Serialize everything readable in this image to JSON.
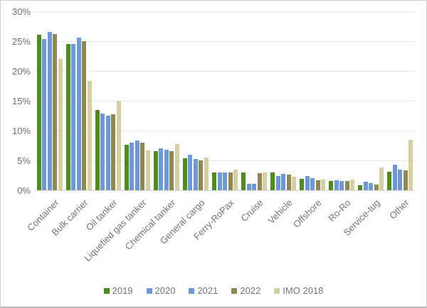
{
  "chart_data": {
    "type": "bar",
    "title": "",
    "categories": [
      "Container",
      "Bulk carrier",
      "Oil tanker",
      "Liquefied gas tanker",
      "Chemical tanker",
      "General cargo",
      "Ferry-RoPax",
      "Cruise",
      "Vehicle",
      "Offshore",
      "Ro-Ro",
      "Service-tug",
      "Other"
    ],
    "series": [
      {
        "name": "2019",
        "color": "#4e8c1e",
        "values": [
          26.1,
          24.5,
          13.4,
          7.6,
          6.5,
          5.3,
          3.0,
          3.0,
          3.0,
          1.9,
          1.5,
          0.8,
          3.1
        ]
      },
      {
        "name": "2020",
        "color": "#6d9ad6",
        "values": [
          25.4,
          24.5,
          12.8,
          8.0,
          7.0,
          6.0,
          3.0,
          1.1,
          2.4,
          2.4,
          1.7,
          1.4,
          4.3
        ]
      },
      {
        "name": "2021",
        "color": "#6d9ad6",
        "values": [
          26.6,
          25.6,
          12.5,
          8.3,
          6.8,
          5.2,
          3.0,
          1.1,
          2.7,
          2.0,
          1.6,
          1.2,
          3.5
        ]
      },
      {
        "name": "2022",
        "color": "#8f8853",
        "values": [
          26.2,
          25.0,
          12.7,
          8.0,
          6.5,
          5.0,
          3.0,
          2.9,
          2.6,
          1.7,
          1.5,
          1.0,
          3.3
        ]
      },
      {
        "name": "IMO 2018",
        "color": "#d7cfa4",
        "values": [
          22.0,
          18.3,
          15.0,
          6.7,
          7.7,
          5.5,
          3.4,
          3.0,
          2.3,
          1.8,
          1.8,
          3.8,
          8.4
        ]
      }
    ],
    "ylim": [
      0,
      30
    ],
    "ytick_step": 5,
    "ytick_labels": [
      "0%",
      "5%",
      "10%",
      "15%",
      "20%",
      "25%",
      "30%"
    ],
    "xlabel": "",
    "ylabel": "",
    "grid": true,
    "legend_position": "bottom"
  },
  "layout_colors": {
    "gridline": "#e6e6e6",
    "axis_text": "#6f6f6f",
    "background": "#ffffff"
  }
}
